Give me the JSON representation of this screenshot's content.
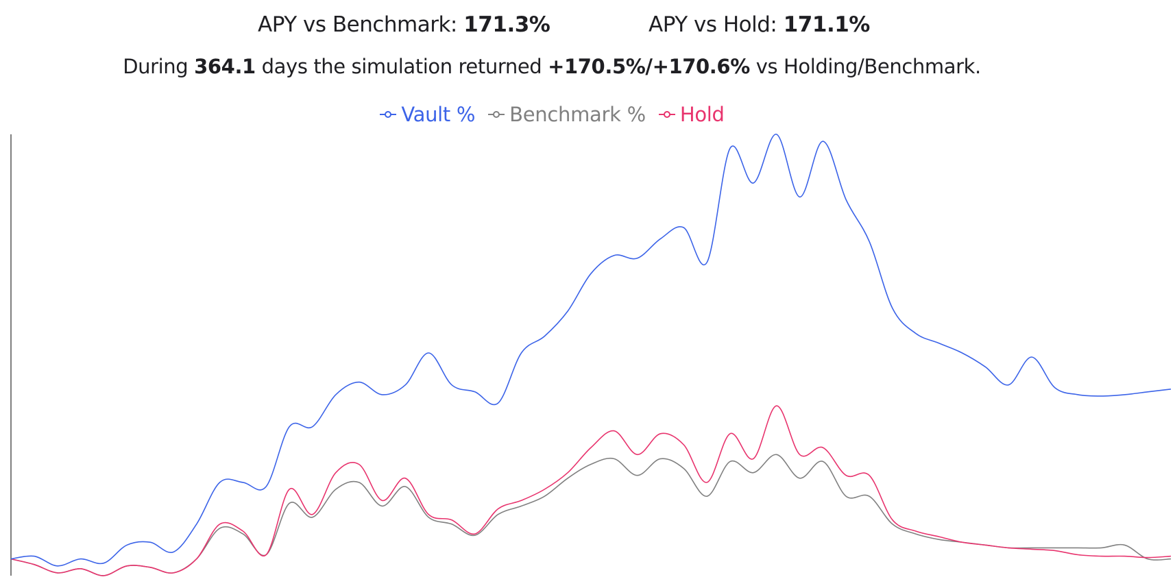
{
  "stats": {
    "benchmark_label": "APY vs Benchmark:",
    "benchmark_value": "171.3%",
    "hold_label": "APY vs Hold:",
    "hold_value": "171.1%"
  },
  "summary": {
    "prefix": "During",
    "days": "364.1",
    "middle": "days the simulation returned",
    "returns": "+170.5%/+170.6%",
    "suffix": "vs Holding/Benchmark."
  },
  "chart_data": {
    "type": "line",
    "title": "",
    "xlabel": "",
    "ylabel": "",
    "x_axis_shown": false,
    "y_axis_tick_labels_shown": false,
    "grid": false,
    "legend_position": "top-center",
    "x": [
      0,
      2,
      4,
      6,
      8,
      10,
      12,
      14,
      16,
      18,
      20,
      22,
      24,
      26,
      28,
      30,
      32,
      34,
      36,
      38,
      40,
      42,
      44,
      46,
      48,
      50,
      52,
      54,
      56,
      58,
      60,
      62,
      64,
      66,
      68,
      70,
      72,
      74,
      76,
      78,
      80,
      82,
      84,
      86,
      88,
      90,
      92,
      94,
      96,
      98,
      100
    ],
    "ylim": [
      -12,
      305
    ],
    "series": [
      {
        "name": "Vault %",
        "color": "#3b63e8",
        "values": [
          0,
          2,
          -5,
          0,
          -3,
          10,
          12,
          5,
          25,
          55,
          55,
          52,
          95,
          95,
          118,
          127,
          118,
          125,
          148,
          125,
          120,
          112,
          148,
          160,
          178,
          205,
          218,
          216,
          230,
          238,
          213,
          295,
          270,
          305,
          260,
          300,
          258,
          228,
          180,
          162,
          155,
          148,
          138,
          125,
          145,
          123,
          118,
          117,
          118,
          120,
          122
        ]
      },
      {
        "name": "Benchmark %",
        "color": "#808080",
        "values": [
          0,
          -4,
          -10,
          -7,
          -12,
          -5,
          -6,
          -10,
          0,
          22,
          18,
          3,
          40,
          30,
          50,
          55,
          38,
          52,
          30,
          25,
          17,
          32,
          38,
          45,
          58,
          68,
          72,
          60,
          72,
          65,
          45,
          70,
          62,
          75,
          58,
          70,
          45,
          45,
          25,
          18,
          14,
          12,
          10,
          8,
          8,
          8,
          8,
          8,
          10,
          0,
          0
        ]
      },
      {
        "name": "Hold",
        "color": "#e8336d",
        "values": [
          0,
          -4,
          -10,
          -7,
          -12,
          -5,
          -6,
          -10,
          0,
          25,
          20,
          3,
          50,
          32,
          62,
          68,
          42,
          58,
          32,
          28,
          18,
          36,
          42,
          50,
          62,
          80,
          92,
          75,
          90,
          82,
          55,
          90,
          72,
          110,
          75,
          80,
          60,
          60,
          28,
          20,
          16,
          12,
          10,
          8,
          7,
          6,
          3,
          2,
          2,
          1,
          2
        ]
      }
    ]
  }
}
